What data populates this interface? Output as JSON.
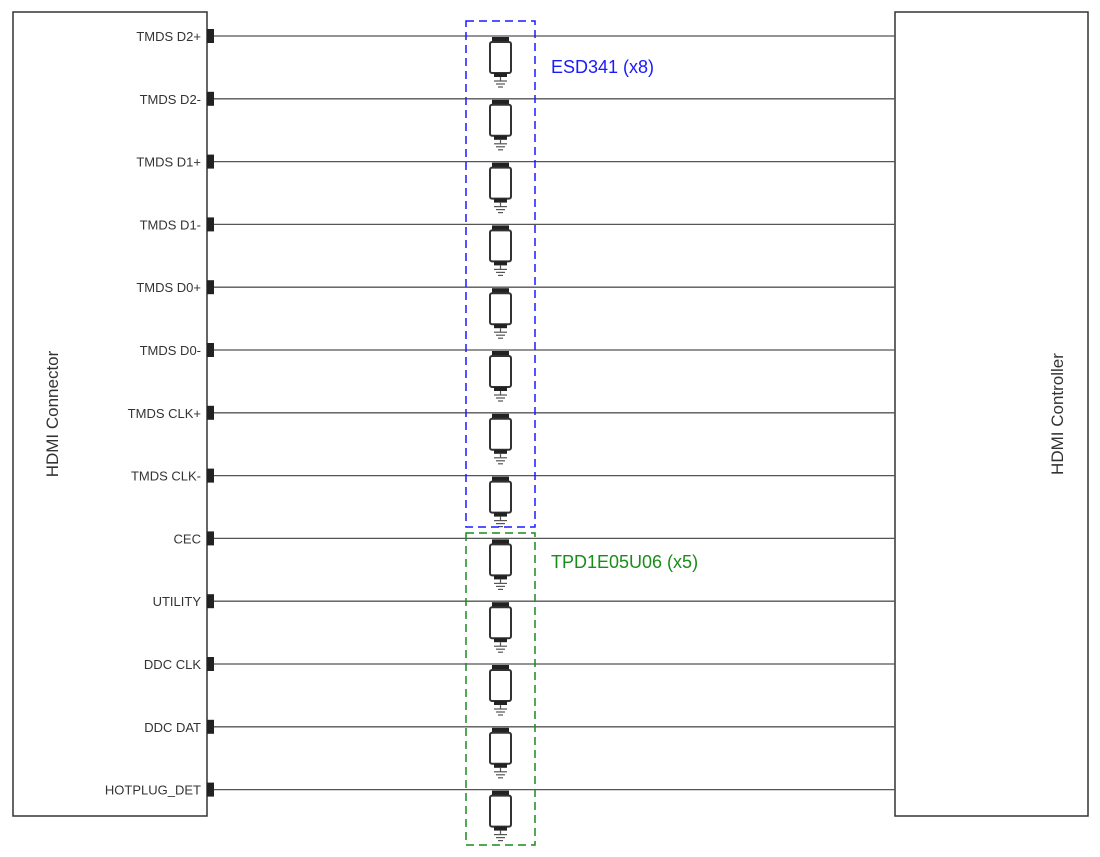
{
  "left_block": {
    "label": "HDMI Connector"
  },
  "right_block": {
    "label": "HDMI Controller"
  },
  "signals": [
    "TMDS D2+",
    "TMDS D2-",
    "TMDS D1+",
    "TMDS D1-",
    "TMDS D0+",
    "TMDS D0-",
    "TMDS CLK+",
    "TMDS CLK-",
    "CEC",
    "UTILITY",
    "DDC CLK",
    "DDC DAT",
    "HOTPLUG_DET"
  ],
  "groups": [
    {
      "label": "ESD341 (x8)",
      "color": "#1a1aff",
      "count": 8
    },
    {
      "label": "TPD1E05U06 (x5)",
      "color": "#1a8c1a",
      "count": 5
    }
  ]
}
